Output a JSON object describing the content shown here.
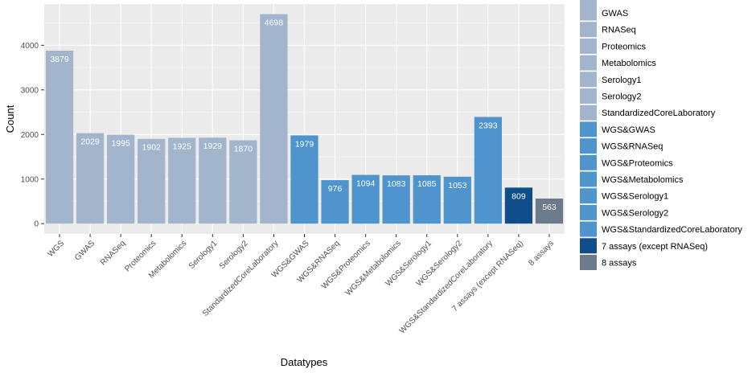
{
  "chart_data": {
    "type": "bar",
    "xlabel": "Datatypes",
    "ylabel": "Count",
    "ylim": [
      -230,
      4925
    ],
    "yticks": [
      0,
      1000,
      2000,
      3000,
      4000
    ],
    "grid": true,
    "legend_position": "right",
    "categories": [
      "WGS",
      "GWAS",
      "RNASeq",
      "Proteomics",
      "Metabolomics",
      "Serology1",
      "Serology2",
      "StandardizedCoreLaboratory",
      "WGS&GWAS",
      "WGS&RNASeq",
      "WGS&Proteomics",
      "WGS&Metabolomics",
      "WGS&Serology1",
      "WGS&Serology2",
      "WGS&StandardizedCoreLaboratory",
      "7 assays (except RNASeq)",
      "8 assays"
    ],
    "values": [
      3879,
      2029,
      1995,
      1902,
      1925,
      1929,
      1870,
      4698,
      1979,
      976,
      1094,
      1083,
      1085,
      1053,
      2393,
      809,
      563
    ],
    "colors": [
      "#a2b5cd",
      "#a2b5cd",
      "#a2b5cd",
      "#a2b5cd",
      "#a2b5cd",
      "#a2b5cd",
      "#a2b5cd",
      "#a2b5cd",
      "#4f94cd",
      "#4f94cd",
      "#4f94cd",
      "#4f94cd",
      "#4f94cd",
      "#4f94cd",
      "#4f94cd",
      "#104e8b",
      "#6c7b8b"
    ],
    "legend": [
      {
        "label": "GWAS",
        "color": "#a2b5cd"
      },
      {
        "label": "RNASeq",
        "color": "#a2b5cd"
      },
      {
        "label": "Proteomics",
        "color": "#a2b5cd"
      },
      {
        "label": "Metabolomics",
        "color": "#a2b5cd"
      },
      {
        "label": "Serology1",
        "color": "#a2b5cd"
      },
      {
        "label": "Serology2",
        "color": "#a2b5cd"
      },
      {
        "label": "StandardizedCoreLaboratory",
        "color": "#a2b5cd"
      },
      {
        "label": "WGS&GWAS",
        "color": "#4f94cd"
      },
      {
        "label": "WGS&RNASeq",
        "color": "#4f94cd"
      },
      {
        "label": "WGS&Proteomics",
        "color": "#4f94cd"
      },
      {
        "label": "WGS&Metabolomics",
        "color": "#4f94cd"
      },
      {
        "label": "WGS&Serology1",
        "color": "#4f94cd"
      },
      {
        "label": "WGS&Serology2",
        "color": "#4f94cd"
      },
      {
        "label": "WGS&StandardizedCoreLaboratory",
        "color": "#4f94cd"
      },
      {
        "label": "7 assays (except RNASeq)",
        "color": "#104e8b"
      },
      {
        "label": "8 assays",
        "color": "#6c7b8b"
      }
    ]
  }
}
